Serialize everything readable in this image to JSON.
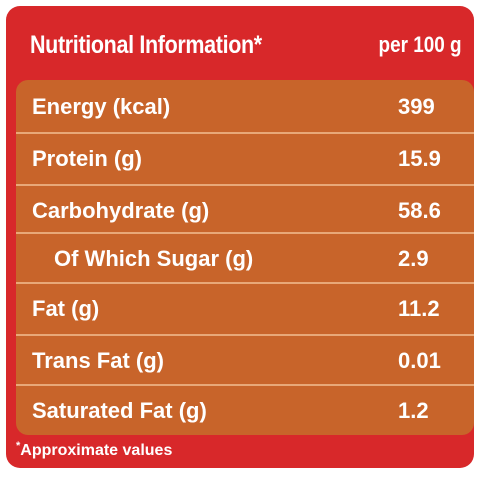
{
  "header": {
    "title": "Nutritional Information*",
    "per": "per 100 g"
  },
  "rows": [
    {
      "label": "Energy (kcal)",
      "value": "399"
    },
    {
      "label": "Protein (g)",
      "value": "15.9"
    },
    {
      "label": "Carbohydrate (g)",
      "value": "58.6"
    },
    {
      "label": "Of Which Sugar (g)",
      "value": "2.9"
    },
    {
      "label": "Fat (g)",
      "value": "11.2"
    },
    {
      "label": "Trans Fat (g)",
      "value": "0.01"
    },
    {
      "label": "Saturated Fat (g)",
      "value": "1.2"
    }
  ],
  "footnote": {
    "marker": "*",
    "text": "Approximate values"
  },
  "colors": {
    "frame_red": "#d8282a",
    "table_orange": "#c8642a",
    "divider": "#e8a878",
    "text": "#ffffff"
  }
}
